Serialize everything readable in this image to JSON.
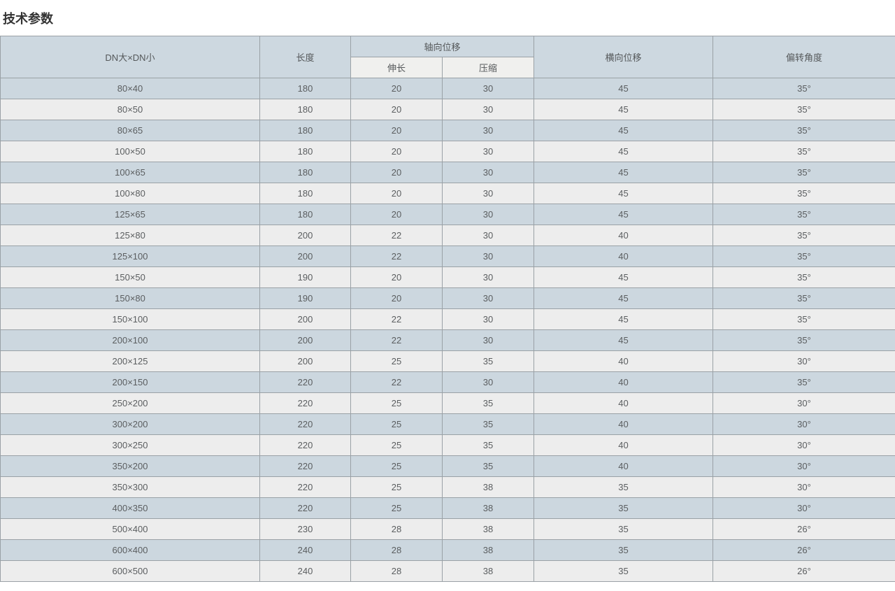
{
  "page": {
    "title": "技术参数"
  },
  "table": {
    "headers": {
      "dn": "DN大×DN小",
      "length": "长度",
      "axial_displacement": "轴向位移",
      "extension": "伸长",
      "compression": "压缩",
      "lateral_displacement": "横向位移",
      "deflection_angle": "偏转角度"
    },
    "rows": [
      [
        "80×40",
        "180",
        "20",
        "30",
        "45",
        "35°"
      ],
      [
        "80×50",
        "180",
        "20",
        "30",
        "45",
        "35°"
      ],
      [
        "80×65",
        "180",
        "20",
        "30",
        "45",
        "35°"
      ],
      [
        "100×50",
        "180",
        "20",
        "30",
        "45",
        "35°"
      ],
      [
        "100×65",
        "180",
        "20",
        "30",
        "45",
        "35°"
      ],
      [
        "100×80",
        "180",
        "20",
        "30",
        "45",
        "35°"
      ],
      [
        "125×65",
        "180",
        "20",
        "30",
        "45",
        "35°"
      ],
      [
        "125×80",
        "200",
        "22",
        "30",
        "40",
        "35°"
      ],
      [
        "125×100",
        "200",
        "22",
        "30",
        "40",
        "35°"
      ],
      [
        "150×50",
        "190",
        "20",
        "30",
        "45",
        "35°"
      ],
      [
        "150×80",
        "190",
        "20",
        "30",
        "45",
        "35°"
      ],
      [
        "150×100",
        "200",
        "22",
        "30",
        "45",
        "35°"
      ],
      [
        "200×100",
        "200",
        "22",
        "30",
        "45",
        "35°"
      ],
      [
        "200×125",
        "200",
        "25",
        "35",
        "40",
        "30°"
      ],
      [
        "200×150",
        "220",
        "22",
        "30",
        "40",
        "35°"
      ],
      [
        "250×200",
        "220",
        "25",
        "35",
        "40",
        "30°"
      ],
      [
        "300×200",
        "220",
        "25",
        "35",
        "40",
        "30°"
      ],
      [
        "300×250",
        "220",
        "25",
        "35",
        "40",
        "30°"
      ],
      [
        "350×200",
        "220",
        "25",
        "35",
        "40",
        "30°"
      ],
      [
        "350×300",
        "220",
        "25",
        "38",
        "35",
        "30°"
      ],
      [
        "400×350",
        "220",
        "25",
        "38",
        "35",
        "30°"
      ],
      [
        "500×400",
        "230",
        "28",
        "38",
        "35",
        "26°"
      ],
      [
        "600×400",
        "240",
        "28",
        "38",
        "35",
        "26°"
      ],
      [
        "600×500",
        "240",
        "28",
        "38",
        "35",
        "26°"
      ]
    ]
  },
  "colors": {
    "header_bg": "#cdd8e0",
    "subheader_bg": "#f0f0ee",
    "row_odd_bg": "#ccd7df",
    "row_even_bg": "#ededed",
    "border": "#9aa1a6",
    "text": "#5b5e60",
    "title_text": "#333333"
  }
}
